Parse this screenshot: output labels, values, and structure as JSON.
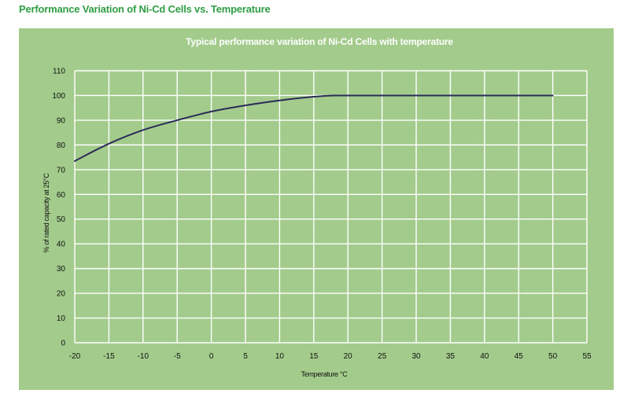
{
  "page": {
    "title": "Performance Variation of Ni-Cd Cells vs. Temperature"
  },
  "colors": {
    "title_green": "#2f9e44",
    "panel_background": "#a3cc8c",
    "grid": "#ffffff",
    "curve": "#2b2b57"
  },
  "chart_data": {
    "type": "line",
    "title": "Typical performance variation of Ni-Cd Cells with temperature",
    "xlabel": "Temperature °C",
    "ylabel": "% of rated capacity at 25°C",
    "xlim": [
      -20,
      55
    ],
    "ylim": [
      0,
      110
    ],
    "x_ticks": [
      -20,
      -15,
      -10,
      -5,
      0,
      5,
      10,
      15,
      20,
      25,
      30,
      35,
      40,
      45,
      50,
      55
    ],
    "y_ticks": [
      0,
      10,
      20,
      30,
      40,
      50,
      60,
      70,
      80,
      90,
      100,
      110
    ],
    "grid": true,
    "legend": "none",
    "series": [
      {
        "x": [
          -20,
          -15,
          -10,
          -5,
          0,
          5,
          10,
          15,
          18,
          20,
          25,
          30,
          35,
          40,
          45,
          50
        ],
        "y": [
          73.5,
          80.5,
          86,
          90,
          93.5,
          96,
          98,
          99.5,
          100,
          100,
          100,
          100,
          100,
          100,
          100,
          100
        ]
      }
    ]
  }
}
